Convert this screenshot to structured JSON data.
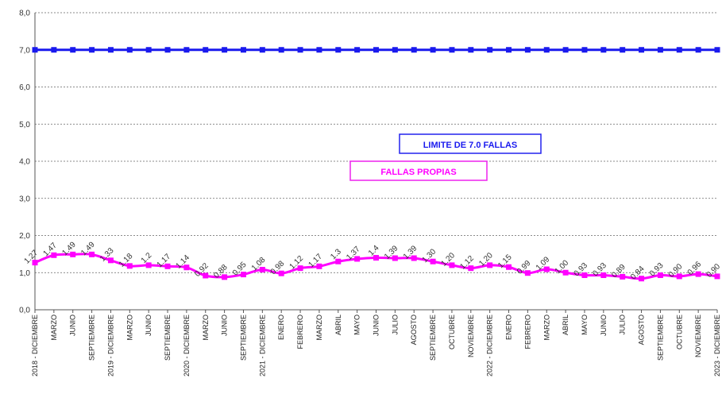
{
  "chart_data": {
    "type": "line",
    "ylim": [
      0,
      8
    ],
    "yticks": [
      "0,0",
      "1,0",
      "2,0",
      "3,0",
      "4,0",
      "5,0",
      "6,0",
      "7,0",
      "8,0"
    ],
    "grid": true,
    "categories": [
      "2018 - DICIEMBRE",
      "MARZO",
      "JUNIO",
      "SEPTIEMBRE",
      "2019 - DICIEMBRE",
      "MARZO",
      "JUNIO",
      "SEPTIEMBRE",
      "2020 - DICIEMBRE",
      "MARZO",
      "JUNIO",
      "SEPTIEMBRE",
      "2021 - DICIEMBRE",
      "ENERO",
      "FEBRERO",
      "MARZO",
      "ABRIL",
      "MAYO",
      "JUNIO",
      "JULIO",
      "AGOSTO",
      "SEPTIEMBRE",
      "OCTUBRE",
      "NOVIEMBRE",
      "2022 - DICIEMBRE",
      "ENERO",
      "FEBRERO",
      "MARZO",
      "ABRIL",
      "MAYO",
      "JUNIO",
      "JULIO",
      "AGOSTO",
      "SEPTIEMBRE",
      "OCTUBRE",
      "NOVIEMBRE",
      "2023 - DICIEMBRE"
    ],
    "series": [
      {
        "name": "LIMITE DE 7.0 FALLAS",
        "color": "#1a1aee",
        "values": [
          7,
          7,
          7,
          7,
          7,
          7,
          7,
          7,
          7,
          7,
          7,
          7,
          7,
          7,
          7,
          7,
          7,
          7,
          7,
          7,
          7,
          7,
          7,
          7,
          7,
          7,
          7,
          7,
          7,
          7,
          7,
          7,
          7,
          7,
          7,
          7,
          7
        ]
      },
      {
        "name": "FALLAS PROPIAS",
        "color": "#ff00ff",
        "values": [
          1.27,
          1.47,
          1.49,
          1.49,
          1.33,
          1.18,
          1.2,
          1.17,
          1.14,
          0.92,
          0.88,
          0.95,
          1.08,
          0.98,
          1.12,
          1.17,
          1.3,
          1.37,
          1.4,
          1.39,
          1.39,
          1.3,
          1.2,
          1.12,
          1.2,
          1.15,
          0.99,
          1.09,
          1.0,
          0.93,
          0.93,
          0.89,
          0.84,
          0.93,
          0.9,
          0.96,
          0.9
        ],
        "labels": [
          "1.27",
          "1.47",
          "1.49",
          "1.49",
          "1.33",
          "1.18",
          "1.2",
          "1.17",
          "1.14",
          "0.92",
          "0.88",
          "0.95",
          "1.08",
          "0.98",
          "1.12",
          "1.17",
          "1.3",
          "1.37",
          "1.4",
          "1.39",
          "1.39",
          "1.30",
          "1.20",
          "1.12",
          "1.20",
          "1.15",
          "0.99",
          "1.09",
          "1.00",
          "0.93",
          "0.93",
          "0.89",
          "0.84",
          "0.93",
          "0.90",
          "0.96",
          "0.90"
        ]
      }
    ]
  }
}
